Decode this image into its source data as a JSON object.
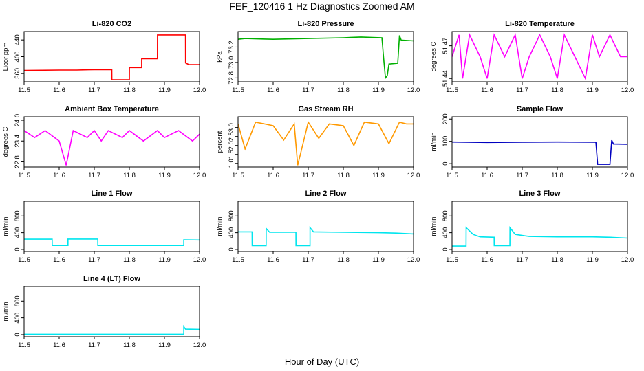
{
  "figure": {
    "title": "FEF_120416  1 Hz Diagnostics Zoomed AM",
    "xlabel": "Hour of Day (UTC)"
  },
  "chart_data": [
    {
      "type": "line",
      "title": "Li-820 CO2",
      "ylabel": "Licor ppm",
      "color": "#ff0000",
      "xlim": [
        11.5,
        12.0
      ],
      "ylim": [
        340,
        460
      ],
      "xticks": [
        11.5,
        11.6,
        11.7,
        11.8,
        11.9,
        12.0
      ],
      "yticks": [
        360,
        400,
        440
      ],
      "x": [
        11.5,
        11.6,
        11.65,
        11.7,
        11.75,
        11.7501,
        11.8,
        11.8001,
        11.835,
        11.8351,
        11.88,
        11.8801,
        11.96,
        11.9601,
        11.97,
        12.0
      ],
      "y": [
        367,
        368,
        368,
        369,
        369,
        345,
        345,
        374,
        374,
        395,
        395,
        452,
        452,
        385,
        381,
        381
      ]
    },
    {
      "type": "line",
      "title": "Li-820 Pressure",
      "ylabel": "kPa",
      "color": "#00b000",
      "xlim": [
        11.5,
        12.0
      ],
      "ylim": [
        72.75,
        73.4
      ],
      "xticks": [
        11.5,
        11.6,
        11.7,
        11.8,
        11.9,
        12.0
      ],
      "yticks": [
        72.8,
        73.0,
        73.2
      ],
      "x": [
        11.5,
        11.52,
        11.6,
        11.7,
        11.8,
        11.85,
        11.91,
        11.915,
        11.92,
        11.925,
        11.93,
        11.955,
        11.96,
        11.965,
        12.0
      ],
      "y": [
        73.3,
        73.31,
        73.3,
        73.31,
        73.32,
        73.33,
        73.32,
        73.05,
        72.8,
        72.83,
        72.98,
        72.99,
        73.35,
        73.29,
        73.28
      ]
    },
    {
      "type": "line",
      "title": "Li-820 Temperature",
      "ylabel": "degrees C",
      "color": "#ff00ff",
      "xlim": [
        11.5,
        12.0
      ],
      "ylim": [
        51.437,
        51.483
      ],
      "xticks": [
        11.5,
        11.6,
        11.7,
        11.8,
        11.9,
        12.0
      ],
      "yticks": [
        51.44,
        51.47
      ],
      "x": [
        11.5,
        11.52,
        11.53,
        11.55,
        11.58,
        11.6,
        11.62,
        11.65,
        11.68,
        11.7,
        11.72,
        11.75,
        11.78,
        11.8,
        11.82,
        11.85,
        11.88,
        11.9,
        11.92,
        11.95,
        11.98,
        12.0
      ],
      "y": [
        51.46,
        51.48,
        51.44,
        51.48,
        51.46,
        51.44,
        51.48,
        51.46,
        51.48,
        51.44,
        51.46,
        51.48,
        51.46,
        51.44,
        51.48,
        51.46,
        51.44,
        51.48,
        51.46,
        51.48,
        51.46,
        51.46
      ]
    },
    {
      "type": "line",
      "title": "Ambient Box Temperature",
      "ylabel": "degrees C",
      "color": "#ff00ff",
      "xlim": [
        11.5,
        12.0
      ],
      "ylim": [
        22.65,
        24.1
      ],
      "xticks": [
        11.5,
        11.6,
        11.7,
        11.8,
        11.9,
        12.0
      ],
      "yticks": [
        22.8,
        23.4,
        24.0
      ],
      "x": [
        11.5,
        11.53,
        11.56,
        11.6,
        11.62,
        11.64,
        11.68,
        11.7,
        11.72,
        11.74,
        11.78,
        11.8,
        11.84,
        11.88,
        11.9,
        11.94,
        11.98,
        12.0
      ],
      "y": [
        23.7,
        23.5,
        23.7,
        23.4,
        22.7,
        23.7,
        23.5,
        23.7,
        23.4,
        23.7,
        23.5,
        23.7,
        23.4,
        23.7,
        23.5,
        23.7,
        23.4,
        23.6
      ]
    },
    {
      "type": "line",
      "title": "Gas Stream RH",
      "ylabel": "percent",
      "color": "#ff9900",
      "xlim": [
        11.5,
        12.0
      ],
      "ylim": [
        0.8,
        3.6
      ],
      "xticks": [
        11.5,
        11.6,
        11.7,
        11.8,
        11.9,
        12.0
      ],
      "yticks": [
        1.0,
        1.5,
        2.0,
        2.5,
        3.0
      ],
      "x": [
        11.5,
        11.52,
        11.55,
        11.6,
        11.63,
        11.66,
        11.67,
        11.7,
        11.73,
        11.76,
        11.8,
        11.83,
        11.86,
        11.9,
        11.93,
        11.96,
        11.98,
        12.0
      ],
      "y": [
        3.2,
        1.8,
        3.3,
        3.1,
        2.3,
        3.2,
        0.9,
        3.3,
        2.4,
        3.2,
        3.1,
        2.0,
        3.3,
        3.2,
        2.1,
        3.3,
        3.2,
        3.2
      ]
    },
    {
      "type": "line",
      "title": "Sample Flow",
      "ylabel": "ml/min",
      "color": "#0000c0",
      "xlim": [
        11.5,
        12.0
      ],
      "ylim": [
        -15,
        210
      ],
      "xticks": [
        11.5,
        11.6,
        11.7,
        11.8,
        11.9,
        12.0
      ],
      "yticks": [
        0,
        100,
        200
      ],
      "x": [
        11.5,
        11.6,
        11.7,
        11.8,
        11.91,
        11.915,
        11.95,
        11.955,
        11.96,
        12.0
      ],
      "y": [
        97,
        95,
        96,
        97,
        96,
        -3,
        -3,
        105,
        88,
        87
      ]
    },
    {
      "type": "line",
      "title": "Line 1 Flow",
      "ylabel": "ml/min",
      "color": "#00e5ee",
      "xlim": [
        11.5,
        12.0
      ],
      "ylim": [
        -50,
        1150
      ],
      "xticks": [
        11.5,
        11.6,
        11.7,
        11.8,
        11.9,
        12.0
      ],
      "yticks": [
        0,
        400,
        800
      ],
      "x": [
        11.5,
        11.58,
        11.5801,
        11.625,
        11.6251,
        11.71,
        11.7101,
        11.955,
        11.9551,
        12.0
      ],
      "y": [
        245,
        245,
        95,
        95,
        248,
        248,
        95,
        95,
        230,
        225
      ]
    },
    {
      "type": "line",
      "title": "Line 2 Flow",
      "ylabel": "ml/min",
      "color": "#00e5ee",
      "xlim": [
        11.5,
        12.0
      ],
      "ylim": [
        -50,
        1150
      ],
      "xticks": [
        11.5,
        11.6,
        11.7,
        11.8,
        11.9,
        12.0
      ],
      "yticks": [
        0,
        400,
        800
      ],
      "x": [
        11.5,
        11.54,
        11.5401,
        11.58,
        11.5801,
        11.59,
        11.665,
        11.6651,
        11.705,
        11.7051,
        11.715,
        11.8,
        11.9,
        11.95,
        12.0
      ],
      "y": [
        420,
        420,
        90,
        90,
        500,
        410,
        410,
        90,
        90,
        520,
        420,
        410,
        400,
        390,
        370
      ]
    },
    {
      "type": "line",
      "title": "Line 3 Flow",
      "ylabel": "ml/min",
      "color": "#00e5ee",
      "xlim": [
        11.5,
        12.0
      ],
      "ylim": [
        -50,
        1150
      ],
      "xticks": [
        11.5,
        11.6,
        11.7,
        11.8,
        11.9,
        12.0
      ],
      "yticks": [
        0,
        400,
        800
      ],
      "x": [
        11.5,
        11.54,
        11.5401,
        11.56,
        11.58,
        11.62,
        11.6201,
        11.665,
        11.6651,
        11.68,
        11.72,
        11.8,
        11.9,
        11.95,
        12.0
      ],
      "y": [
        80,
        80,
        520,
        360,
        300,
        290,
        90,
        90,
        520,
        360,
        310,
        300,
        300,
        290,
        270
      ]
    },
    {
      "type": "line",
      "title": "Line 4 (LT) Flow",
      "ylabel": "ml/min",
      "color": "#00e5ee",
      "xlim": [
        11.5,
        12.0
      ],
      "ylim": [
        -50,
        1150
      ],
      "xticks": [
        11.5,
        11.6,
        11.7,
        11.8,
        11.9,
        12.0
      ],
      "yticks": [
        0,
        400,
        800
      ],
      "x": [
        11.5,
        11.6,
        11.7,
        11.8,
        11.9,
        11.955,
        11.9551,
        11.96,
        12.0
      ],
      "y": [
        10,
        10,
        10,
        10,
        10,
        10,
        190,
        130,
        125
      ]
    }
  ]
}
